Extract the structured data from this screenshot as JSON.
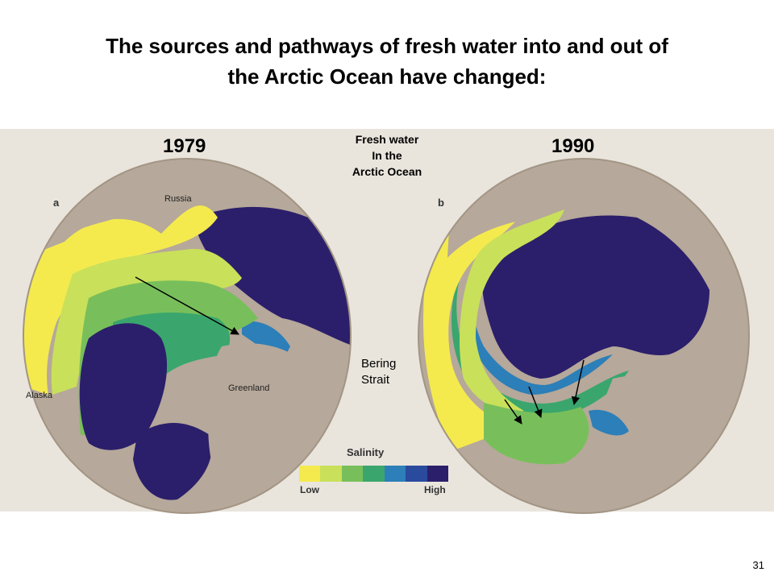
{
  "title": {
    "line1": "The sources and pathways of fresh water into and out of",
    "line2": "the Arctic Ocean have changed:"
  },
  "center_label": {
    "line1": "Fresh water",
    "line2": "In the",
    "line3": "Arctic Ocean"
  },
  "panels": [
    {
      "year": "1979",
      "letter": "a",
      "labels": {
        "russia": "Russia",
        "alaska": "Alaska",
        "greenland": "Greenland"
      }
    },
    {
      "year": "1990",
      "letter": "b"
    }
  ],
  "annotation": {
    "line1": "Bering",
    "line2": "Strait"
  },
  "legend": {
    "title": "Salinity",
    "low": "Low",
    "high": "High",
    "colors": [
      "#f4ea4e",
      "#c9e05a",
      "#78bf5b",
      "#3aa66d",
      "#2c7fb8",
      "#2a4a9e",
      "#2b1f6b"
    ]
  },
  "colors": {
    "land": "#b6a89a",
    "background": "#e9e5dd",
    "fresh": "#f4ea4e",
    "lowmid": "#c9e05a",
    "mid": "#78bf5b",
    "midhigh": "#3aa66d",
    "blue": "#2c7fb8",
    "high": "#2b1f6b"
  },
  "page_number": "31"
}
